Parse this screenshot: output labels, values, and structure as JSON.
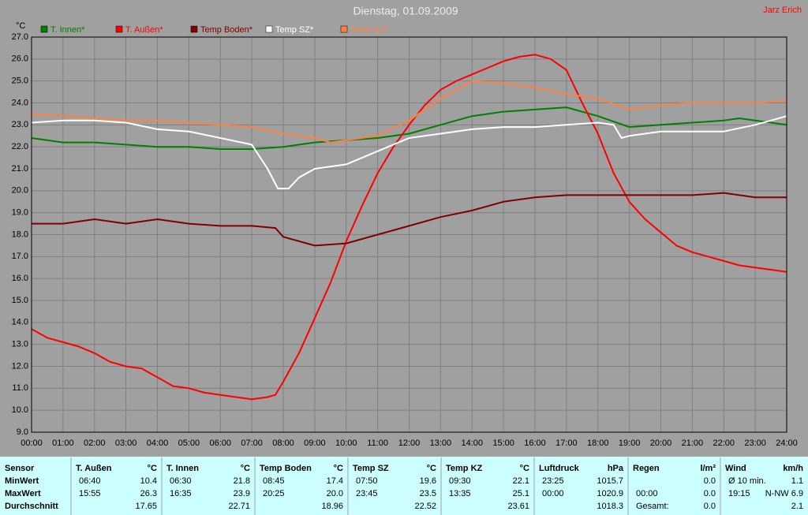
{
  "chart_data": {
    "type": "line",
    "title": "Dienstag, 01.09.2009",
    "author": "Jarz Erich",
    "y_label": "°C",
    "xlim": [
      0,
      24
    ],
    "ylim": [
      9,
      27
    ],
    "grid": true,
    "xticks": [
      {
        "value": 0,
        "label": "00:00"
      },
      {
        "value": 1,
        "label": "01:00"
      },
      {
        "value": 2,
        "label": "02:00"
      },
      {
        "value": 3,
        "label": "03:00"
      },
      {
        "value": 4,
        "label": "04:00"
      },
      {
        "value": 5,
        "label": "05:00"
      },
      {
        "value": 6,
        "label": "06:00"
      },
      {
        "value": 7,
        "label": "07:00"
      },
      {
        "value": 8,
        "label": "08:00"
      },
      {
        "value": 9,
        "label": "09:00"
      },
      {
        "value": 10,
        "label": "10:00"
      },
      {
        "value": 11,
        "label": "11:00"
      },
      {
        "value": 12,
        "label": "12:00"
      },
      {
        "value": 13,
        "label": "13:00"
      },
      {
        "value": 14,
        "label": "14:00"
      },
      {
        "value": 15,
        "label": "15:00"
      },
      {
        "value": 16,
        "label": "16:00"
      },
      {
        "value": 17,
        "label": "17:00"
      },
      {
        "value": 18,
        "label": "18:00"
      },
      {
        "value": 19,
        "label": "19:00"
      },
      {
        "value": 20,
        "label": "20:00"
      },
      {
        "value": 21,
        "label": "21:00"
      },
      {
        "value": 22,
        "label": "22:00"
      },
      {
        "value": 23,
        "label": "23:00"
      },
      {
        "value": 24,
        "label": "24:00"
      }
    ],
    "yticks": [
      {
        "value": 9,
        "label": "9.0"
      },
      {
        "value": 10,
        "label": "10.0"
      },
      {
        "value": 11,
        "label": "11.0"
      },
      {
        "value": 12,
        "label": "12.0"
      },
      {
        "value": 13,
        "label": "13.0"
      },
      {
        "value": 14,
        "label": "14.0"
      },
      {
        "value": 15,
        "label": "15.0"
      },
      {
        "value": 16,
        "label": "16.0"
      },
      {
        "value": 17,
        "label": "17.0"
      },
      {
        "value": 18,
        "label": "18.0"
      },
      {
        "value": 19,
        "label": "19.0"
      },
      {
        "value": 20,
        "label": "20.0"
      },
      {
        "value": 21,
        "label": "21.0"
      },
      {
        "value": 22,
        "label": "22.0"
      },
      {
        "value": 23,
        "label": "23.0"
      },
      {
        "value": 24,
        "label": "24.0"
      },
      {
        "value": 25,
        "label": "25.0"
      },
      {
        "value": 26,
        "label": "26.0"
      },
      {
        "value": 27,
        "label": "27.0"
      }
    ],
    "series": [
      {
        "name": "T. Innen*",
        "color": "#008000",
        "x": [
          0,
          1,
          2,
          3,
          4,
          5,
          6,
          7,
          8,
          9,
          10,
          11,
          12,
          13,
          14,
          15,
          16,
          17,
          18,
          19,
          20,
          21,
          22,
          22.5,
          23,
          24
        ],
        "values": [
          22.4,
          22.2,
          22.2,
          22.1,
          22.0,
          22.0,
          21.9,
          21.9,
          22.0,
          22.2,
          22.3,
          22.4,
          22.6,
          23.0,
          23.4,
          23.6,
          23.7,
          23.8,
          23.4,
          22.9,
          23.0,
          23.1,
          23.2,
          23.3,
          23.2,
          23.0
        ]
      },
      {
        "name": "T. Außen*",
        "color": "#ff0000",
        "x": [
          0,
          0.5,
          1,
          1.5,
          2,
          2.5,
          3,
          3.5,
          4,
          4.5,
          5,
          5.5,
          6,
          6.5,
          7,
          7.5,
          7.75,
          8,
          8.5,
          9,
          9.5,
          10,
          10.5,
          11,
          11.5,
          12,
          12.5,
          13,
          13.5,
          14,
          14.5,
          15,
          15.5,
          16,
          16.5,
          17,
          17.5,
          18,
          18.5,
          19,
          19.5,
          20,
          20.5,
          21,
          21.5,
          22,
          22.5,
          23,
          23.5,
          24
        ],
        "values": [
          13.7,
          13.3,
          13.1,
          12.9,
          12.6,
          12.2,
          12.0,
          11.9,
          11.5,
          11.1,
          11.0,
          10.8,
          10.7,
          10.6,
          10.5,
          10.6,
          10.7,
          11.3,
          12.6,
          14.2,
          15.8,
          17.7,
          19.3,
          20.8,
          22.0,
          23.0,
          23.9,
          24.6,
          25.0,
          25.3,
          25.6,
          25.9,
          26.1,
          26.2,
          26.0,
          25.5,
          24.0,
          22.6,
          20.8,
          19.5,
          18.7,
          18.1,
          17.5,
          17.2,
          17.0,
          16.8,
          16.6,
          16.5,
          16.4,
          16.3
        ]
      },
      {
        "name": "Temp Boden*",
        "color": "#800000",
        "x": [
          0,
          1,
          2,
          3,
          4,
          5,
          6,
          7,
          7.75,
          8,
          9,
          10,
          11,
          12,
          13,
          14,
          15,
          16,
          17,
          18,
          19,
          20,
          21,
          22,
          23,
          24
        ],
        "values": [
          18.5,
          18.5,
          18.7,
          18.5,
          18.7,
          18.5,
          18.4,
          18.4,
          18.3,
          17.9,
          17.5,
          17.6,
          18.0,
          18.4,
          18.8,
          19.1,
          19.5,
          19.7,
          19.8,
          19.8,
          19.8,
          19.8,
          19.8,
          19.9,
          19.7,
          19.7
        ]
      },
      {
        "name": "Temp SZ*",
        "color": "#ffffff",
        "x": [
          0,
          1,
          2,
          3,
          4,
          5,
          6,
          7,
          7.5,
          7.83,
          8.17,
          8.5,
          9,
          10,
          11,
          12,
          13,
          14,
          15,
          16,
          17,
          18,
          18.5,
          18.75,
          19,
          20,
          21,
          22,
          23,
          24
        ],
        "values": [
          23.1,
          23.2,
          23.2,
          23.1,
          22.8,
          22.7,
          22.4,
          22.1,
          21.0,
          20.1,
          20.1,
          20.6,
          21.0,
          21.2,
          21.8,
          22.4,
          22.6,
          22.8,
          22.9,
          22.9,
          23.0,
          23.1,
          23.0,
          22.4,
          22.5,
          22.7,
          22.7,
          22.7,
          23.0,
          23.4
        ]
      },
      {
        "name": "Temp KZ*",
        "color": "#ff8040",
        "x": [
          0,
          1,
          2,
          3,
          4,
          5,
          6,
          7,
          8,
          9,
          9.5,
          10,
          11,
          12,
          13,
          14,
          15,
          16,
          17,
          18,
          19,
          20,
          21,
          22,
          23,
          24
        ],
        "values": [
          23.5,
          23.4,
          23.3,
          23.2,
          23.2,
          23.1,
          23.0,
          22.9,
          22.6,
          22.4,
          22.2,
          22.3,
          22.5,
          23.2,
          24.2,
          25.0,
          24.9,
          24.7,
          24.4,
          24.2,
          23.7,
          23.9,
          24.0,
          24.0,
          24.0,
          24.1
        ]
      }
    ]
  },
  "table": {
    "sensor_header": "Sensor",
    "row_labels": [
      "MinWert",
      "MaxWert",
      "Durchschnitt"
    ],
    "columns": [
      {
        "name": "T. Außen",
        "unit": "°C",
        "cells": [
          [
            "06:40",
            "10.4"
          ],
          [
            "15:55",
            "26.3"
          ],
          [
            null,
            "17.65"
          ]
        ]
      },
      {
        "name": "T. Innen",
        "unit": "°C",
        "cells": [
          [
            "06:30",
            "21.8"
          ],
          [
            "16:35",
            "23.9"
          ],
          [
            null,
            "22.71"
          ]
        ]
      },
      {
        "name": "Temp Boden",
        "unit": "°C",
        "cells": [
          [
            "08:45",
            "17.4"
          ],
          [
            "20:25",
            "20.0"
          ],
          [
            null,
            "18.96"
          ]
        ]
      },
      {
        "name": "Temp SZ",
        "unit": "°C",
        "cells": [
          [
            "07:50",
            "19.6"
          ],
          [
            "23:45",
            "23.5"
          ],
          [
            null,
            "22.52"
          ]
        ]
      },
      {
        "name": "Temp KZ",
        "unit": "°C",
        "cells": [
          [
            "09:30",
            "22.1"
          ],
          [
            "13:35",
            "25.1"
          ],
          [
            null,
            "23.61"
          ]
        ]
      },
      {
        "name": "Luftdruck",
        "unit": "hPa",
        "cells": [
          [
            "23:25",
            "1015.7"
          ],
          [
            "00:00",
            "1020.9"
          ],
          [
            null,
            "1018.3"
          ]
        ]
      },
      {
        "name": "Regen",
        "unit": "l/m²",
        "cells": [
          [
            null,
            "0.0"
          ],
          [
            "00:00",
            "0.0"
          ],
          [
            "Gesamt:",
            "0.0"
          ]
        ]
      },
      {
        "name": "Wind",
        "unit": "km/h",
        "cells": [
          [
            "Ø 10 min.",
            "1.1"
          ],
          [
            "19:15",
            "N-NW 6.9"
          ],
          [
            null,
            "2.1"
          ]
        ]
      }
    ]
  }
}
